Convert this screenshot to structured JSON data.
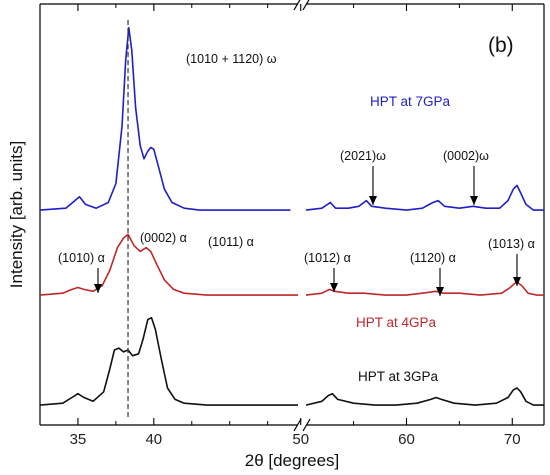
{
  "chart_data": {
    "type": "line",
    "panel_label": "(b)",
    "xlabel": "2θ [degrees]",
    "ylabel": "Intensity [arb. units]",
    "xlim": [
      32.5,
      73
    ],
    "axis_break": [
      49.5,
      50.5
    ],
    "x_ticks": [
      "35",
      "40",
      "50",
      "60",
      "70"
    ],
    "reference_line_x": 38.3,
    "series": [
      {
        "name": "HPT at 7GPa",
        "color": "#1f1fc8",
        "baseline": 0.0,
        "points": [
          [
            32.5,
            0.01
          ],
          [
            34.2,
            0.02
          ],
          [
            34.8,
            0.06
          ],
          [
            35.1,
            0.08
          ],
          [
            35.5,
            0.04
          ],
          [
            36.2,
            0.02
          ],
          [
            37.0,
            0.05
          ],
          [
            37.5,
            0.15
          ],
          [
            37.9,
            0.45
          ],
          [
            38.15,
            0.8
          ],
          [
            38.35,
            0.97
          ],
          [
            38.55,
            0.85
          ],
          [
            38.8,
            0.55
          ],
          [
            39.1,
            0.35
          ],
          [
            39.35,
            0.28
          ],
          [
            39.6,
            0.32
          ],
          [
            39.8,
            0.34
          ],
          [
            40.0,
            0.33
          ],
          [
            40.3,
            0.24
          ],
          [
            40.7,
            0.12
          ],
          [
            41.2,
            0.05
          ],
          [
            42.0,
            0.02
          ],
          [
            43.0,
            0.01
          ],
          [
            44.5,
            0.01
          ],
          [
            46.0,
            0.01
          ],
          [
            47.5,
            0.01
          ],
          [
            49.0,
            0.01
          ],
          [
            50.5,
            0.01
          ],
          [
            52.0,
            0.02
          ],
          [
            52.8,
            0.05
          ],
          [
            53.3,
            0.02
          ],
          [
            54.5,
            0.02
          ],
          [
            55.5,
            0.03
          ],
          [
            56.2,
            0.06
          ],
          [
            56.7,
            0.03
          ],
          [
            58.0,
            0.02
          ],
          [
            60.0,
            0.01
          ],
          [
            61.5,
            0.02
          ],
          [
            62.5,
            0.05
          ],
          [
            63.0,
            0.06
          ],
          [
            63.6,
            0.03
          ],
          [
            65.0,
            0.02
          ],
          [
            66.3,
            0.03
          ],
          [
            67.5,
            0.02
          ],
          [
            68.8,
            0.02
          ],
          [
            69.6,
            0.06
          ],
          [
            70.1,
            0.12
          ],
          [
            70.45,
            0.14
          ],
          [
            70.8,
            0.1
          ],
          [
            71.3,
            0.04
          ],
          [
            72.0,
            0.01
          ],
          [
            73.0,
            0.01
          ]
        ]
      },
      {
        "name": "HPT at 4GPa",
        "color": "#c0282a",
        "baseline": 0.0,
        "points": [
          [
            32.5,
            0.01
          ],
          [
            34.0,
            0.02
          ],
          [
            34.6,
            0.04
          ],
          [
            35.0,
            0.05
          ],
          [
            35.4,
            0.04
          ],
          [
            36.0,
            0.03
          ],
          [
            36.6,
            0.06
          ],
          [
            37.1,
            0.14
          ],
          [
            37.6,
            0.26
          ],
          [
            38.0,
            0.31
          ],
          [
            38.3,
            0.33
          ],
          [
            38.7,
            0.27
          ],
          [
            39.1,
            0.24
          ],
          [
            39.5,
            0.26
          ],
          [
            39.8,
            0.24
          ],
          [
            40.2,
            0.17
          ],
          [
            40.7,
            0.09
          ],
          [
            41.3,
            0.04
          ],
          [
            42.0,
            0.02
          ],
          [
            43.5,
            0.01
          ],
          [
            45.0,
            0.01
          ],
          [
            46.5,
            0.01
          ],
          [
            48.0,
            0.01
          ],
          [
            49.5,
            0.01
          ],
          [
            50.5,
            0.01
          ],
          [
            52.0,
            0.02
          ],
          [
            52.7,
            0.04
          ],
          [
            53.2,
            0.03
          ],
          [
            54.5,
            0.02
          ],
          [
            56.0,
            0.02
          ],
          [
            58.0,
            0.01
          ],
          [
            60.0,
            0.01
          ],
          [
            61.5,
            0.02
          ],
          [
            62.8,
            0.03
          ],
          [
            63.5,
            0.02
          ],
          [
            65.0,
            0.02
          ],
          [
            67.0,
            0.01
          ],
          [
            69.0,
            0.02
          ],
          [
            69.8,
            0.05
          ],
          [
            70.4,
            0.08
          ],
          [
            70.9,
            0.06
          ],
          [
            71.5,
            0.02
          ],
          [
            72.3,
            0.01
          ],
          [
            73.0,
            0.01
          ]
        ]
      },
      {
        "name": "HPT at 3GPa",
        "color": "#111111",
        "baseline": 0.0,
        "points": [
          [
            32.5,
            0.01
          ],
          [
            34.0,
            0.02
          ],
          [
            34.6,
            0.05
          ],
          [
            35.0,
            0.07
          ],
          [
            35.4,
            0.05
          ],
          [
            36.0,
            0.03
          ],
          [
            36.7,
            0.08
          ],
          [
            37.1,
            0.2
          ],
          [
            37.4,
            0.3
          ],
          [
            37.7,
            0.31
          ],
          [
            38.0,
            0.29
          ],
          [
            38.3,
            0.3
          ],
          [
            38.6,
            0.27
          ],
          [
            39.0,
            0.28
          ],
          [
            39.3,
            0.36
          ],
          [
            39.6,
            0.46
          ],
          [
            39.85,
            0.47
          ],
          [
            40.1,
            0.41
          ],
          [
            40.5,
            0.25
          ],
          [
            40.9,
            0.1
          ],
          [
            41.4,
            0.04
          ],
          [
            42.0,
            0.02
          ],
          [
            43.5,
            0.01
          ],
          [
            45.0,
            0.01
          ],
          [
            46.5,
            0.01
          ],
          [
            48.0,
            0.01
          ],
          [
            49.5,
            0.01
          ],
          [
            50.5,
            0.01
          ],
          [
            52.0,
            0.03
          ],
          [
            52.6,
            0.06
          ],
          [
            53.0,
            0.07
          ],
          [
            53.5,
            0.04
          ],
          [
            55.0,
            0.02
          ],
          [
            57.0,
            0.01
          ],
          [
            59.0,
            0.01
          ],
          [
            61.0,
            0.02
          ],
          [
            62.3,
            0.04
          ],
          [
            62.8,
            0.05
          ],
          [
            63.3,
            0.04
          ],
          [
            64.5,
            0.02
          ],
          [
            66.5,
            0.01
          ],
          [
            68.5,
            0.02
          ],
          [
            69.6,
            0.05
          ],
          [
            70.1,
            0.09
          ],
          [
            70.45,
            0.1
          ],
          [
            70.8,
            0.08
          ],
          [
            71.3,
            0.03
          ],
          [
            72.0,
            0.01
          ],
          [
            73.0,
            0.01
          ]
        ]
      }
    ],
    "annotations": {
      "peak_w_main": "(1010 + 1120) ω",
      "w_2021": "(2021)ω",
      "w_0002": "(0002)ω",
      "a_1010": "(1010) α",
      "a_0002": "(0002) α",
      "a_1011": "(1011) α",
      "a_1012": "(1012) α",
      "a_1120": "(1120) α",
      "a_1013": "(1013) α"
    },
    "grid": false,
    "legend": "none (series labels placed next to curves)"
  }
}
